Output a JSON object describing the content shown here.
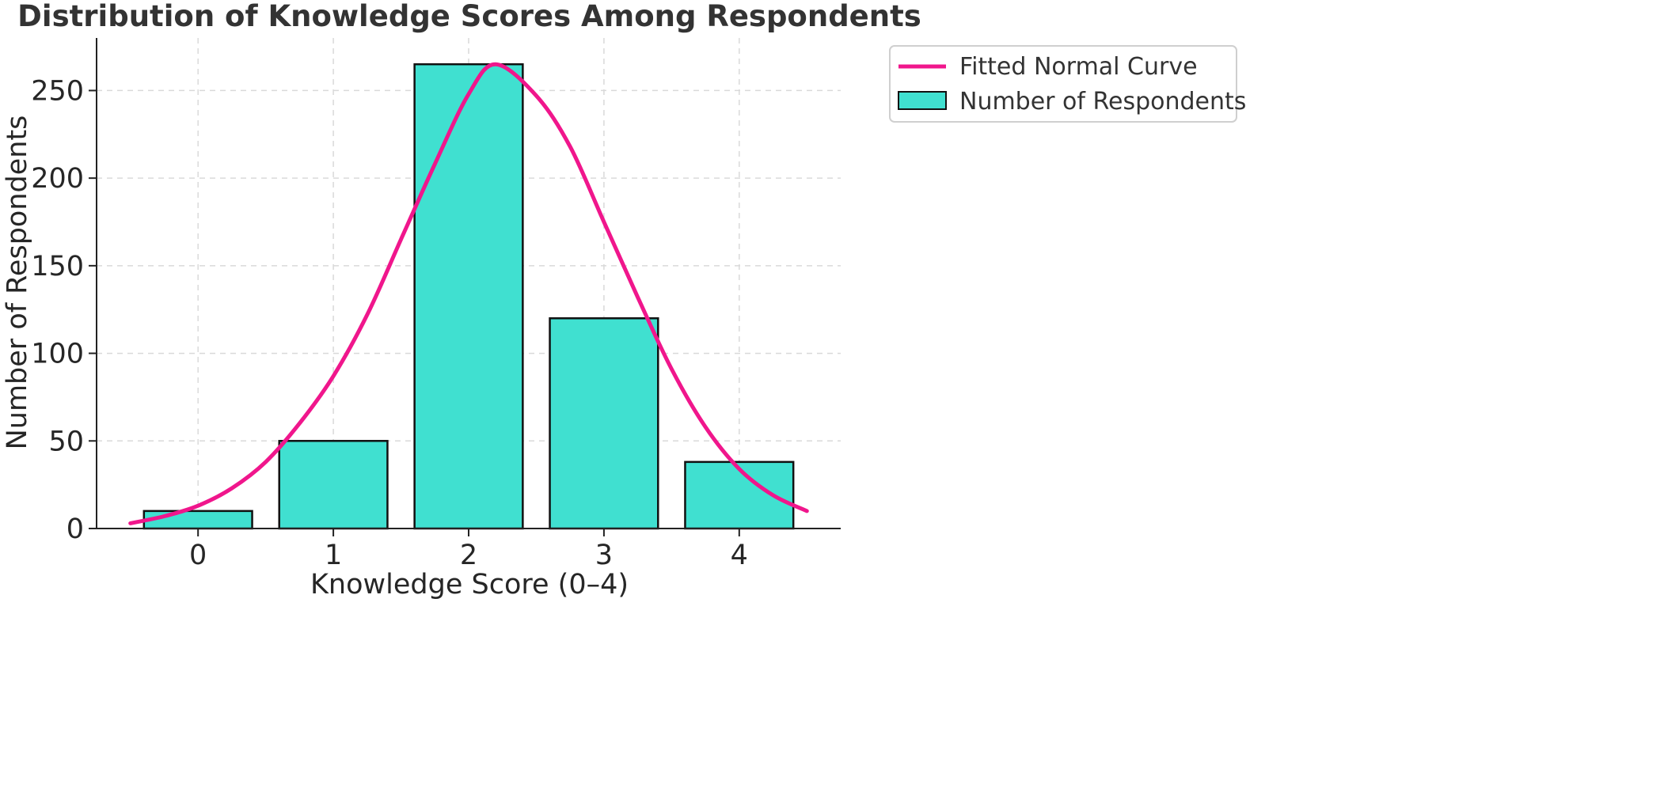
{
  "colors": {
    "bar_fill": "#40E0D0",
    "bar_edge": "#111111",
    "curve": "#F0168C",
    "grid": "#d9d9d9",
    "axis": "#222222"
  },
  "chart_data": {
    "type": "bar",
    "title": "Distribution of Knowledge Scores Among Respondents",
    "xlabel": "Knowledge Score (0–4)",
    "ylabel": "Number of Respondents",
    "categories": [
      "0",
      "1",
      "2",
      "3",
      "4"
    ],
    "x": [
      0,
      1,
      2,
      3,
      4
    ],
    "xlim": [
      -0.75,
      4.75
    ],
    "ylim": [
      0,
      280
    ],
    "yticks": [
      0,
      50,
      100,
      150,
      200,
      250
    ],
    "grid": true,
    "legend_position": "outside-top-right",
    "series": [
      {
        "name": "Number of Respondents",
        "kind": "bar",
        "values": [
          10,
          50,
          265,
          120,
          38
        ]
      },
      {
        "name": "Fitted Normal Curve",
        "kind": "line",
        "x": [
          -0.5,
          -0.25,
          0.0,
          0.25,
          0.5,
          0.75,
          1.0,
          1.25,
          1.5,
          1.75,
          2.0,
          2.2,
          2.5,
          2.75,
          3.0,
          3.25,
          3.5,
          3.75,
          4.0,
          4.25,
          4.5
        ],
        "y": [
          3,
          7,
          13,
          23,
          38,
          60,
          87,
          122,
          165,
          208,
          248,
          265,
          247,
          218,
          175,
          132,
          91,
          58,
          34,
          19,
          10
        ]
      }
    ]
  }
}
